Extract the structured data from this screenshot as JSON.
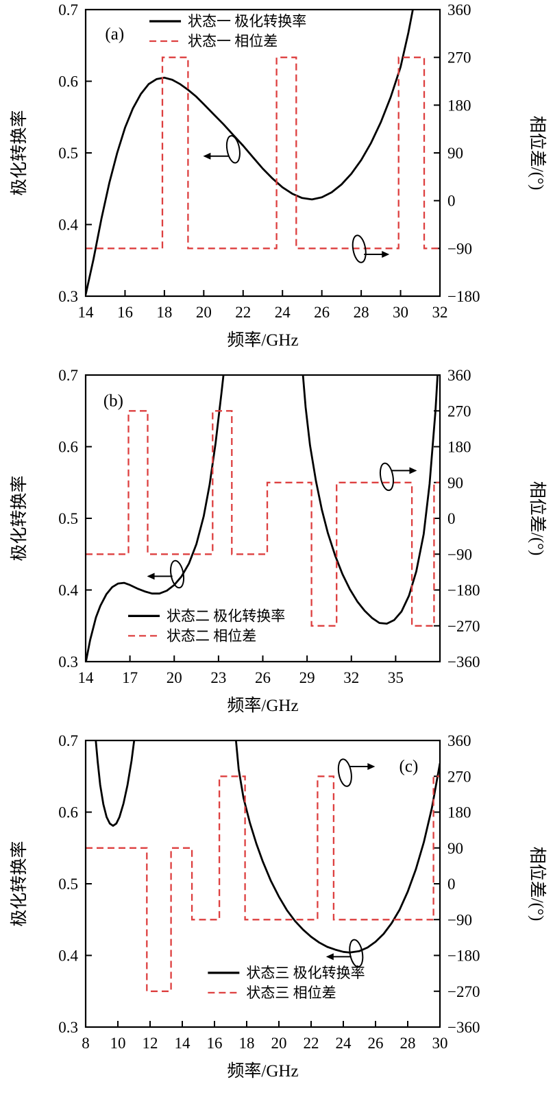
{
  "colors": {
    "solid_line": "#000000",
    "dashed_line": "#dd3f3f",
    "axis": "#000000",
    "text": "#000000",
    "background": "#ffffff"
  },
  "chart_data": [
    {
      "type": "line",
      "panel_label": "(a)",
      "panel_label_pos": [
        0.055,
        0.07
      ],
      "xlabel": "频率/GHz",
      "ylabel_left": "极化转换率",
      "ylabel_right": "相位差/(°)",
      "x_range": [
        14,
        32
      ],
      "x_ticks": [
        14,
        16,
        18,
        20,
        22,
        24,
        26,
        28,
        30,
        32
      ],
      "yleft_range": [
        0.3,
        0.7
      ],
      "yleft_ticks": [
        "0.3",
        "0.4",
        "0.5",
        "0.6",
        "0.7"
      ],
      "yright_range": [
        -180,
        360
      ],
      "yright_ticks": [
        -180,
        -90,
        0,
        90,
        180,
        270,
        360
      ],
      "legend": {
        "pos": [
          0.18,
          0.0
        ],
        "items": [
          {
            "style": "solid",
            "label": "状态一 极化转换率"
          },
          {
            "style": "dashed",
            "label": "状态一 相位差"
          }
        ]
      },
      "series": [
        {
          "name": "状态一 极化转换率",
          "axis": "left",
          "style": "solid",
          "points": [
            [
              14,
              0.302
            ],
            [
              14.4,
              0.352
            ],
            [
              14.8,
              0.408
            ],
            [
              15.2,
              0.458
            ],
            [
              15.6,
              0.5
            ],
            [
              16,
              0.535
            ],
            [
              16.4,
              0.562
            ],
            [
              16.8,
              0.582
            ],
            [
              17.2,
              0.596
            ],
            [
              17.6,
              0.603
            ],
            [
              18,
              0.605
            ],
            [
              18.4,
              0.602
            ],
            [
              18.8,
              0.596
            ],
            [
              19.2,
              0.588
            ],
            [
              19.6,
              0.579
            ],
            [
              20,
              0.568
            ],
            [
              20.5,
              0.554
            ],
            [
              21,
              0.54
            ],
            [
              21.5,
              0.525
            ],
            [
              22,
              0.51
            ],
            [
              22.5,
              0.494
            ],
            [
              23,
              0.478
            ],
            [
              23.5,
              0.464
            ],
            [
              24,
              0.452
            ],
            [
              24.5,
              0.443
            ],
            [
              25,
              0.437
            ],
            [
              25.5,
              0.435
            ],
            [
              26,
              0.438
            ],
            [
              26.5,
              0.445
            ],
            [
              27,
              0.456
            ],
            [
              27.5,
              0.471
            ],
            [
              28,
              0.49
            ],
            [
              28.5,
              0.514
            ],
            [
              29,
              0.543
            ],
            [
              29.5,
              0.578
            ],
            [
              30,
              0.62
            ],
            [
              30.4,
              0.668
            ],
            [
              30.8,
              0.725
            ]
          ]
        },
        {
          "name": "状态一 相位差",
          "axis": "right",
          "style": "dashed",
          "segments": [
            [
              14,
              17.9,
              -90
            ],
            [
              17.9,
              19.2,
              270
            ],
            [
              19.2,
              23.7,
              -90
            ],
            [
              23.7,
              24.7,
              270
            ],
            [
              24.7,
              29.9,
              -90
            ],
            [
              29.9,
              31.2,
              270
            ],
            [
              31.2,
              32,
              -90
            ]
          ]
        }
      ],
      "annotations": [
        {
          "at": [
            21.5,
            0.505
          ],
          "dir": "left",
          "ady": 0.5
        },
        {
          "at": [
            27.9,
            0.366
          ],
          "dir": "right",
          "ady": 0.4
        }
      ]
    },
    {
      "type": "line",
      "panel_label": "(b)",
      "panel_label_pos": [
        0.05,
        0.075
      ],
      "xlabel": "频率/GHz",
      "ylabel_left": "极化转换率",
      "ylabel_right": "相位差/(°)",
      "x_range": [
        14,
        38
      ],
      "x_ticks": [
        14,
        17,
        20,
        23,
        26,
        29,
        32,
        35
      ],
      "yleft_range": [
        0.3,
        0.7
      ],
      "yleft_ticks": [
        "0.3",
        "0.4",
        "0.5",
        "0.6",
        "0.7"
      ],
      "yright_range": [
        -360,
        360
      ],
      "yright_ticks": [
        -360,
        -270,
        -180,
        -90,
        0,
        90,
        180,
        270,
        360
      ],
      "legend": {
        "pos": [
          0.12,
          0.8
        ],
        "items": [
          {
            "style": "solid",
            "label": "状态二 极化转换率"
          },
          {
            "style": "dashed",
            "label": "状态二 相位差"
          }
        ]
      },
      "series": [
        {
          "name": "状态二 极化转换率",
          "axis": "left",
          "style": "solid",
          "points": [
            [
              14,
              0.298
            ],
            [
              14.3,
              0.33
            ],
            [
              14.7,
              0.362
            ],
            [
              15,
              0.378
            ],
            [
              15.4,
              0.394
            ],
            [
              15.8,
              0.404
            ],
            [
              16.2,
              0.409
            ],
            [
              16.6,
              0.41
            ],
            [
              17,
              0.407
            ],
            [
              17.5,
              0.402
            ],
            [
              18,
              0.398
            ],
            [
              18.5,
              0.395
            ],
            [
              19,
              0.395
            ],
            [
              19.5,
              0.399
            ],
            [
              20,
              0.407
            ],
            [
              20.5,
              0.419
            ],
            [
              21,
              0.437
            ],
            [
              21.5,
              0.464
            ],
            [
              22,
              0.503
            ],
            [
              22.4,
              0.547
            ],
            [
              22.8,
              0.605
            ],
            [
              23.2,
              0.675
            ],
            [
              23.5,
              0.73
            ],
            [
              28.6,
              0.73
            ],
            [
              28.9,
              0.655
            ],
            [
              29.2,
              0.602
            ],
            [
              29.6,
              0.552
            ],
            [
              30,
              0.512
            ],
            [
              30.4,
              0.48
            ],
            [
              30.9,
              0.448
            ],
            [
              31.4,
              0.422
            ],
            [
              31.9,
              0.401
            ],
            [
              32.4,
              0.384
            ],
            [
              32.9,
              0.371
            ],
            [
              33.4,
              0.361
            ],
            [
              33.9,
              0.354
            ],
            [
              34.4,
              0.353
            ],
            [
              34.9,
              0.358
            ],
            [
              35.4,
              0.37
            ],
            [
              35.9,
              0.392
            ],
            [
              36.4,
              0.426
            ],
            [
              36.9,
              0.478
            ],
            [
              37.3,
              0.548
            ],
            [
              37.7,
              0.65
            ],
            [
              37.9,
              0.72
            ]
          ]
        },
        {
          "name": "状态二 相位差",
          "axis": "right",
          "style": "dashed",
          "segments": [
            [
              14,
              16.9,
              -90
            ],
            [
              16.9,
              18.2,
              270
            ],
            [
              18.2,
              22.6,
              -90
            ],
            [
              22.6,
              23.9,
              270
            ],
            [
              23.9,
              26.3,
              -90
            ],
            [
              26.3,
              29.3,
              90
            ],
            [
              29.3,
              31,
              -270
            ],
            [
              31,
              36.1,
              90
            ],
            [
              36.1,
              37.6,
              -270
            ],
            [
              37.6,
              38,
              90
            ]
          ]
        }
      ],
      "annotations": [
        {
          "at": [
            20.2,
            0.422
          ],
          "dir": "left",
          "ady": 0.15
        },
        {
          "at": [
            34.4,
            0.558
          ],
          "dir": "right",
          "ady": -0.45
        }
      ]
    },
    {
      "type": "line",
      "panel_label": "(c)",
      "panel_label_pos": [
        0.885,
        0.075
      ],
      "xlabel": "频率/GHz",
      "ylabel_left": "极化转换率",
      "ylabel_right": "相位差/(°)",
      "x_range": [
        8,
        30
      ],
      "x_ticks": [
        8,
        10,
        12,
        14,
        16,
        18,
        20,
        22,
        24,
        26,
        28,
        30
      ],
      "yleft_range": [
        0.3,
        0.7
      ],
      "yleft_ticks": [
        "0.3",
        "0.4",
        "0.5",
        "0.6",
        "0.7"
      ],
      "yright_range": [
        -360,
        360
      ],
      "yright_ticks": [
        -360,
        -270,
        -180,
        -90,
        0,
        90,
        180,
        270,
        360
      ],
      "legend": {
        "pos": [
          0.345,
          0.77
        ],
        "items": [
          {
            "style": "solid",
            "label": "状态三 极化转换率"
          },
          {
            "style": "dashed",
            "label": "状态三 相位差"
          }
        ]
      },
      "series": [
        {
          "name": "状态三 极化转换率",
          "axis": "left",
          "style": "solid",
          "points": [
            [
              8.55,
              0.72
            ],
            [
              8.75,
              0.67
            ],
            [
              8.9,
              0.638
            ],
            [
              9.1,
              0.611
            ],
            [
              9.3,
              0.593
            ],
            [
              9.5,
              0.584
            ],
            [
              9.7,
              0.581
            ],
            [
              9.9,
              0.584
            ],
            [
              10.1,
              0.593
            ],
            [
              10.35,
              0.612
            ],
            [
              10.6,
              0.638
            ],
            [
              10.85,
              0.672
            ],
            [
              11.1,
              0.715
            ],
            [
              17.25,
              0.72
            ],
            [
              17.5,
              0.66
            ],
            [
              17.8,
              0.62
            ],
            [
              18.2,
              0.585
            ],
            [
              18.6,
              0.556
            ],
            [
              19,
              0.531
            ],
            [
              19.5,
              0.504
            ],
            [
              20,
              0.482
            ],
            [
              20.5,
              0.463
            ],
            [
              21,
              0.448
            ],
            [
              21.5,
              0.436
            ],
            [
              22,
              0.426
            ],
            [
              22.5,
              0.418
            ],
            [
              23,
              0.412
            ],
            [
              23.5,
              0.408
            ],
            [
              24,
              0.405
            ],
            [
              24.4,
              0.404
            ],
            [
              25,
              0.406
            ],
            [
              25.5,
              0.411
            ],
            [
              26,
              0.419
            ],
            [
              26.5,
              0.43
            ],
            [
              27,
              0.445
            ],
            [
              27.5,
              0.464
            ],
            [
              28,
              0.489
            ],
            [
              28.5,
              0.52
            ],
            [
              29,
              0.558
            ],
            [
              29.5,
              0.606
            ],
            [
              30,
              0.668
            ]
          ]
        },
        {
          "name": "状态三 相位差",
          "axis": "right",
          "style": "dashed",
          "segments": [
            [
              8,
              11.8,
              90
            ],
            [
              11.8,
              13.3,
              -270
            ],
            [
              13.3,
              14.6,
              90
            ],
            [
              14.6,
              16.3,
              -90
            ],
            [
              16.3,
              17.9,
              270
            ],
            [
              17.9,
              22.4,
              -90
            ],
            [
              22.4,
              23.4,
              270
            ],
            [
              23.4,
              29.6,
              -90
            ],
            [
              29.6,
              30,
              270
            ]
          ]
        }
      ],
      "annotations": [
        {
          "at": [
            24.1,
            0.655
          ],
          "dir": "right",
          "ady": -0.45
        },
        {
          "at": [
            24.8,
            0.403
          ],
          "dir": "left",
          "ady": 0.25
        }
      ]
    }
  ]
}
